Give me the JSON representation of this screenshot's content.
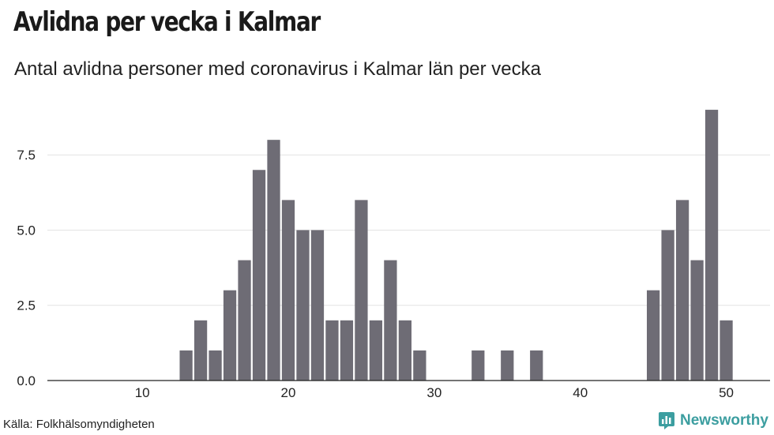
{
  "header": {
    "title": "Avlidna per vecka i Kalmar",
    "subtitle": "Antal avlidna personer med coronavirus i Kalmar län per vecka"
  },
  "footer": {
    "source": "Källa: Folkhälsomyndigheten",
    "brand": "Newsworthy",
    "brand_icon": "newsworthy-logo-icon"
  },
  "colors": {
    "bar": "#6e6c75",
    "grid": "#e3e3e3",
    "axis": "#222222",
    "brand": "#3c9ea0"
  },
  "chart_data": {
    "type": "bar",
    "title": "Avlidna per vecka i Kalmar",
    "subtitle": "Antal avlidna personer med coronavirus i Kalmar län per vecka",
    "xlabel": "",
    "ylabel": "",
    "x": [
      13,
      14,
      15,
      16,
      17,
      18,
      19,
      20,
      21,
      22,
      23,
      24,
      25,
      26,
      27,
      28,
      29,
      33,
      35,
      37,
      45,
      46,
      47,
      48,
      49,
      50
    ],
    "values": [
      1,
      2,
      1,
      3,
      4,
      7,
      8,
      6,
      5,
      5,
      2,
      2,
      6,
      2,
      4,
      2,
      1,
      1,
      1,
      1,
      3,
      5,
      6,
      4,
      9,
      2
    ],
    "xlim": [
      3.5,
      53
    ],
    "ylim": [
      0,
      9.5
    ],
    "xticks": [
      10,
      20,
      30,
      40,
      50
    ],
    "yticks": [
      "0.0",
      "2.5",
      "5.0",
      "7.5"
    ],
    "grid": "horizontal",
    "legend": "none"
  }
}
